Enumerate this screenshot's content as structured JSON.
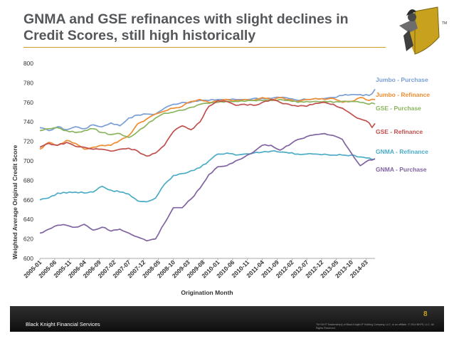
{
  "slide": {
    "title": "GNMA and GSE refinances with slight declines in Credit Scores, still high historically",
    "company": "Black Knight Financial Services",
    "page_number": "8",
    "legal": "TM SM ® Trademark(s) of Black Knight IP Holding Company, LLC, or an affiliate. © 2014 BKFS, LLC. All Rights Reserved.",
    "logo_icon": "knight-logo-icon",
    "logo_mark": "TM"
  },
  "colors": {
    "title": "#55575b",
    "accent": "#c8a21f",
    "footer": "#1f1f1f"
  },
  "chart_data": {
    "type": "line",
    "ylabel": "Weighted Average Original Credit Score",
    "xlabel": "Origination Month",
    "ylim": [
      600,
      800
    ],
    "yticks": [
      600,
      620,
      640,
      660,
      680,
      700,
      720,
      740,
      760,
      780,
      800
    ],
    "x_tick_labels": [
      "2005-01",
      "2005-06",
      "2005-11",
      "2006-04",
      "2006-09",
      "2007-02",
      "2007-07",
      "2007-12",
      "2008-05",
      "2008-10",
      "2009-03",
      "2009-08",
      "2010-01",
      "2010-06",
      "2010-11",
      "2011-04",
      "2011-09",
      "2012-02",
      "2012-07",
      "2012-12",
      "2013-05",
      "2013-10",
      "2014-03"
    ],
    "x_start": "2005-01",
    "grid": false,
    "legend": "right, labels next to line ends",
    "series": [
      {
        "name": "Jumbo - Purchase",
        "color": "#7a9ed6",
        "anchors": [
          [
            0,
            734
          ],
          [
            3,
            731
          ],
          [
            6,
            735
          ],
          [
            9,
            732
          ],
          [
            12,
            735
          ],
          [
            15,
            733
          ],
          [
            18,
            737
          ],
          [
            21,
            735
          ],
          [
            24,
            739
          ],
          [
            27,
            736
          ],
          [
            30,
            744
          ],
          [
            33,
            747
          ],
          [
            36,
            748
          ],
          [
            39,
            748
          ],
          [
            42,
            754
          ],
          [
            45,
            758
          ],
          [
            48,
            760
          ],
          [
            51,
            760
          ],
          [
            54,
            762
          ],
          [
            57,
            762
          ],
          [
            60,
            763
          ],
          [
            63,
            763
          ],
          [
            66,
            763
          ],
          [
            69,
            763
          ],
          [
            72,
            764
          ],
          [
            75,
            764
          ],
          [
            78,
            764
          ],
          [
            81,
            765
          ],
          [
            84,
            764
          ],
          [
            87,
            762
          ],
          [
            90,
            763
          ],
          [
            93,
            764
          ],
          [
            96,
            764
          ],
          [
            99,
            765
          ],
          [
            102,
            767
          ],
          [
            105,
            768
          ],
          [
            108,
            768
          ],
          [
            111,
            767
          ],
          [
            112,
            769
          ],
          [
            113,
            773
          ]
        ]
      },
      {
        "name": "Jumbo  - Refinance",
        "color": "#f08c32",
        "anchors": [
          [
            0,
            712
          ],
          [
            3,
            719
          ],
          [
            6,
            716
          ],
          [
            9,
            721
          ],
          [
            12,
            718
          ],
          [
            15,
            712
          ],
          [
            18,
            714
          ],
          [
            21,
            716
          ],
          [
            24,
            716
          ],
          [
            27,
            721
          ],
          [
            30,
            726
          ],
          [
            33,
            738
          ],
          [
            36,
            743
          ],
          [
            39,
            748
          ],
          [
            42,
            751
          ],
          [
            45,
            754
          ],
          [
            48,
            756
          ],
          [
            51,
            761
          ],
          [
            54,
            763
          ],
          [
            57,
            760
          ],
          [
            60,
            761
          ],
          [
            63,
            763
          ],
          [
            66,
            762
          ],
          [
            69,
            763
          ],
          [
            72,
            762
          ],
          [
            75,
            765
          ],
          [
            78,
            763
          ],
          [
            81,
            765
          ],
          [
            84,
            763
          ],
          [
            87,
            761
          ],
          [
            90,
            763
          ],
          [
            93,
            764
          ],
          [
            96,
            763
          ],
          [
            99,
            764
          ],
          [
            102,
            760
          ],
          [
            105,
            761
          ],
          [
            108,
            765
          ],
          [
            111,
            762
          ],
          [
            112,
            763
          ],
          [
            113,
            763
          ]
        ]
      },
      {
        "name": "GSE - Purchase",
        "color": "#8ab55e",
        "anchors": [
          [
            0,
            731
          ],
          [
            3,
            733
          ],
          [
            6,
            734
          ],
          [
            9,
            731
          ],
          [
            12,
            729
          ],
          [
            15,
            731
          ],
          [
            18,
            733
          ],
          [
            21,
            729
          ],
          [
            24,
            727
          ],
          [
            27,
            728
          ],
          [
            30,
            724
          ],
          [
            33,
            730
          ],
          [
            36,
            737
          ],
          [
            39,
            744
          ],
          [
            42,
            749
          ],
          [
            45,
            750
          ],
          [
            48,
            752
          ],
          [
            51,
            755
          ],
          [
            54,
            758
          ],
          [
            57,
            759
          ],
          [
            60,
            760
          ],
          [
            63,
            761
          ],
          [
            66,
            761
          ],
          [
            69,
            761
          ],
          [
            72,
            762
          ],
          [
            75,
            762
          ],
          [
            78,
            762
          ],
          [
            81,
            763
          ],
          [
            84,
            762
          ],
          [
            87,
            760
          ],
          [
            90,
            761
          ],
          [
            93,
            761
          ],
          [
            96,
            761
          ],
          [
            99,
            760
          ],
          [
            102,
            761
          ],
          [
            105,
            761
          ],
          [
            108,
            760
          ],
          [
            111,
            758
          ],
          [
            112,
            759
          ],
          [
            113,
            759
          ]
        ]
      },
      {
        "name": "GSE - Refinance",
        "color": "#c0504d",
        "anchors": [
          [
            0,
            714
          ],
          [
            3,
            718
          ],
          [
            6,
            716
          ],
          [
            9,
            719
          ],
          [
            12,
            715
          ],
          [
            15,
            714
          ],
          [
            18,
            712
          ],
          [
            21,
            712
          ],
          [
            24,
            710
          ],
          [
            27,
            712
          ],
          [
            30,
            713
          ],
          [
            33,
            710
          ],
          [
            36,
            705
          ],
          [
            39,
            708
          ],
          [
            42,
            716
          ],
          [
            45,
            730
          ],
          [
            48,
            736
          ],
          [
            51,
            732
          ],
          [
            54,
            740
          ],
          [
            57,
            756
          ],
          [
            60,
            762
          ],
          [
            63,
            761
          ],
          [
            66,
            757
          ],
          [
            69,
            758
          ],
          [
            72,
            757
          ],
          [
            75,
            760
          ],
          [
            78,
            763
          ],
          [
            81,
            760
          ],
          [
            84,
            758
          ],
          [
            87,
            756
          ],
          [
            90,
            756
          ],
          [
            93,
            759
          ],
          [
            96,
            760
          ],
          [
            99,
            758
          ],
          [
            102,
            754
          ],
          [
            105,
            748
          ],
          [
            108,
            743
          ],
          [
            111,
            739
          ],
          [
            112,
            735
          ],
          [
            113,
            738
          ]
        ]
      },
      {
        "name": "GNMA - Refinance",
        "color": "#4bacc6",
        "anchors": [
          [
            0,
            660
          ],
          [
            3,
            662
          ],
          [
            6,
            667
          ],
          [
            9,
            667
          ],
          [
            12,
            668
          ],
          [
            15,
            667
          ],
          [
            18,
            668
          ],
          [
            21,
            674
          ],
          [
            24,
            670
          ],
          [
            27,
            668
          ],
          [
            30,
            666
          ],
          [
            33,
            659
          ],
          [
            36,
            658
          ],
          [
            39,
            662
          ],
          [
            42,
            676
          ],
          [
            45,
            685
          ],
          [
            48,
            687
          ],
          [
            51,
            690
          ],
          [
            54,
            693
          ],
          [
            57,
            700
          ],
          [
            60,
            707
          ],
          [
            63,
            708
          ],
          [
            66,
            706
          ],
          [
            69,
            707
          ],
          [
            72,
            708
          ],
          [
            75,
            709
          ],
          [
            78,
            710
          ],
          [
            81,
            709
          ],
          [
            84,
            708
          ],
          [
            87,
            707
          ],
          [
            90,
            707
          ],
          [
            93,
            707
          ],
          [
            96,
            707
          ],
          [
            99,
            706
          ],
          [
            102,
            706
          ],
          [
            105,
            706
          ],
          [
            108,
            704
          ],
          [
            111,
            703
          ],
          [
            112,
            702
          ],
          [
            113,
            702
          ]
        ]
      },
      {
        "name": "GNMA - Purchase",
        "color": "#8064a2",
        "anchors": [
          [
            0,
            626
          ],
          [
            3,
            630
          ],
          [
            6,
            634
          ],
          [
            9,
            634
          ],
          [
            12,
            632
          ],
          [
            15,
            635
          ],
          [
            18,
            629
          ],
          [
            21,
            632
          ],
          [
            24,
            628
          ],
          [
            27,
            630
          ],
          [
            30,
            626
          ],
          [
            33,
            622
          ],
          [
            36,
            618
          ],
          [
            39,
            620
          ],
          [
            42,
            636
          ],
          [
            45,
            652
          ],
          [
            48,
            652
          ],
          [
            51,
            661
          ],
          [
            54,
            672
          ],
          [
            57,
            686
          ],
          [
            60,
            694
          ],
          [
            63,
            695
          ],
          [
            66,
            700
          ],
          [
            69,
            704
          ],
          [
            72,
            709
          ],
          [
            75,
            716
          ],
          [
            78,
            716
          ],
          [
            81,
            711
          ],
          [
            84,
            716
          ],
          [
            87,
            722
          ],
          [
            90,
            725
          ],
          [
            93,
            727
          ],
          [
            96,
            728
          ],
          [
            99,
            726
          ],
          [
            102,
            722
          ],
          [
            105,
            708
          ],
          [
            108,
            695
          ],
          [
            111,
            701
          ],
          [
            112,
            701
          ],
          [
            113,
            703
          ]
        ]
      }
    ]
  }
}
